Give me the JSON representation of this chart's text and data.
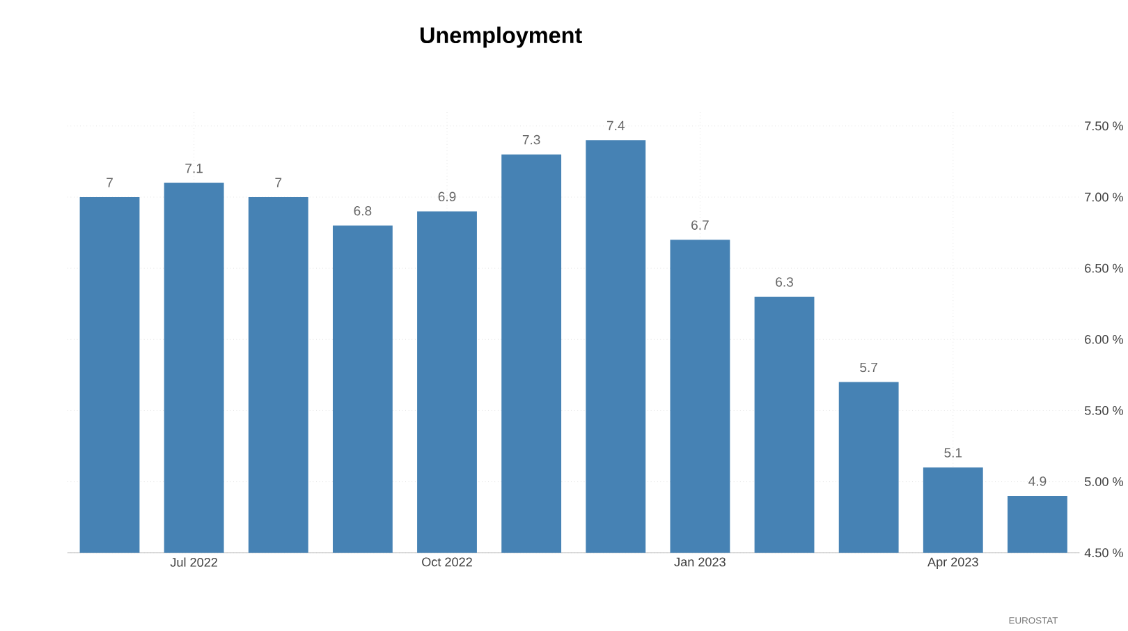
{
  "chart_data": {
    "type": "bar",
    "title": "Unemployment",
    "categories": [
      null,
      "Jul 2022",
      null,
      null,
      "Oct 2022",
      null,
      null,
      "Jan 2023",
      null,
      null,
      "Apr 2023",
      null
    ],
    "values": [
      7,
      7.1,
      7,
      6.8,
      6.9,
      7.3,
      7.4,
      6.7,
      6.3,
      5.7,
      5.1,
      4.9
    ],
    "value_labels": [
      "7",
      "7.1",
      "7",
      "6.8",
      "6.9",
      "7.3",
      "7.4",
      "6.7",
      "6.3",
      "5.7",
      "5.1",
      "4.9"
    ],
    "color": "#4682b4",
    "ylim": [
      4.5,
      7.6
    ],
    "yticks": [
      {
        "value": 4.5,
        "label": "4.50 %"
      },
      {
        "value": 5.0,
        "label": "5.00 %"
      },
      {
        "value": 5.5,
        "label": "5.50 %"
      },
      {
        "value": 6.0,
        "label": "6.00 %"
      },
      {
        "value": 6.5,
        "label": "6.50 %"
      },
      {
        "value": 7.0,
        "label": "7.00 %"
      },
      {
        "value": 7.5,
        "label": "7.50 %"
      }
    ],
    "grid": true,
    "annotations": [
      "EUROSTAT"
    ]
  }
}
